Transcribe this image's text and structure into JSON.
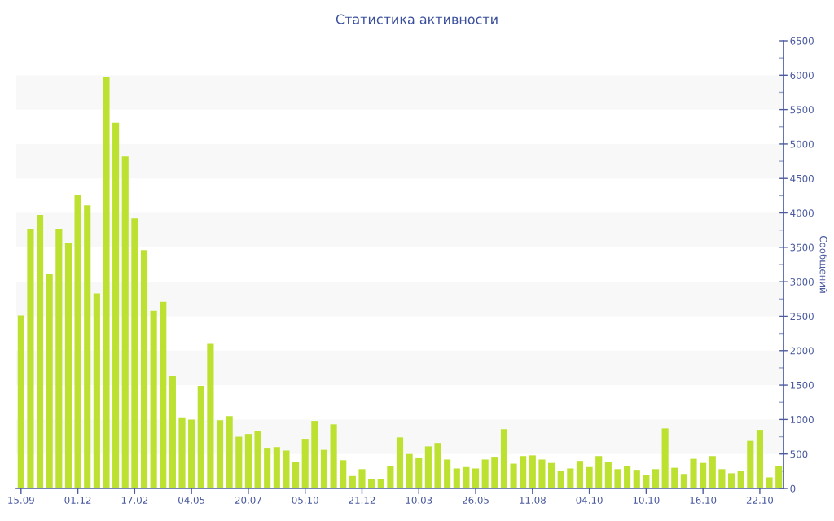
{
  "chart_data": {
    "type": "bar",
    "title": "Статистика активности",
    "ylabel": "Сообщений",
    "categories": [
      "15.09",
      null,
      null,
      null,
      null,
      null,
      "01.12",
      null,
      null,
      null,
      null,
      null,
      "17.02",
      null,
      null,
      null,
      null,
      null,
      "04.05",
      null,
      null,
      null,
      null,
      null,
      "20.07",
      null,
      null,
      null,
      null,
      null,
      "05.10",
      null,
      null,
      null,
      null,
      null,
      "21.12",
      null,
      null,
      null,
      null,
      null,
      "10.03",
      null,
      null,
      null,
      null,
      null,
      "26.05",
      null,
      null,
      null,
      null,
      null,
      "11.08",
      null,
      null,
      null,
      null,
      null,
      "04.10",
      null,
      null,
      null,
      null,
      null,
      "10.10",
      null,
      null,
      null,
      null,
      null,
      "16.10",
      null,
      null,
      null,
      null,
      null,
      "22.10",
      null,
      null
    ],
    "values": [
      2510,
      3770,
      3970,
      3120,
      3770,
      3560,
      4260,
      4110,
      2830,
      5980,
      5310,
      4820,
      3920,
      3460,
      2580,
      2710,
      1630,
      1030,
      1000,
      1490,
      2110,
      990,
      1050,
      750,
      790,
      830,
      590,
      600,
      550,
      380,
      720,
      980,
      560,
      930,
      410,
      180,
      280,
      140,
      130,
      320,
      740,
      500,
      450,
      610,
      660,
      420,
      290,
      310,
      290,
      420,
      460,
      860,
      360,
      470,
      480,
      420,
      370,
      260,
      290,
      400,
      310,
      470,
      380,
      280,
      320,
      270,
      200,
      280,
      870,
      300,
      210,
      430,
      370,
      470,
      280,
      220,
      260,
      690,
      850,
      160,
      330
    ],
    "color": "#bde130",
    "ylim": [
      0,
      6500
    ],
    "yticks": [
      0,
      {
        "value": 250,
        "label": null
      },
      500,
      {
        "value": 750,
        "label": null
      },
      1000,
      {
        "value": 1250,
        "label": null
      },
      1500,
      {
        "value": 1750,
        "label": null
      },
      2000,
      {
        "value": 2250,
        "label": null
      },
      2500,
      {
        "value": 2750,
        "label": null
      },
      3000,
      {
        "value": 3250,
        "label": null
      },
      3500,
      {
        "value": 3750,
        "label": null
      },
      4000,
      {
        "value": 4250,
        "label": null
      },
      4500,
      {
        "value": 4750,
        "label": null
      },
      5000,
      {
        "value": 5250,
        "label": null
      },
      5500,
      {
        "value": 5750,
        "label": null
      },
      6000,
      {
        "value": 6250,
        "label": null
      },
      6500
    ],
    "bands": [
      {
        "axis": "y",
        "from": 500,
        "to": 1000,
        "color": "#f8f8f8"
      },
      {
        "axis": "y",
        "from": 1500,
        "to": 2000,
        "color": "#f8f8f8"
      },
      {
        "axis": "y",
        "from": 2500,
        "to": 3000,
        "color": "#f8f8f8"
      },
      {
        "axis": "y",
        "from": 3500,
        "to": 4000,
        "color": "#f8f8f8"
      },
      {
        "axis": "y",
        "from": 4500,
        "to": 5000,
        "color": "#f8f8f8"
      },
      {
        "axis": "y",
        "from": 5500,
        "to": 6000,
        "color": "#f8f8f8"
      }
    ]
  }
}
